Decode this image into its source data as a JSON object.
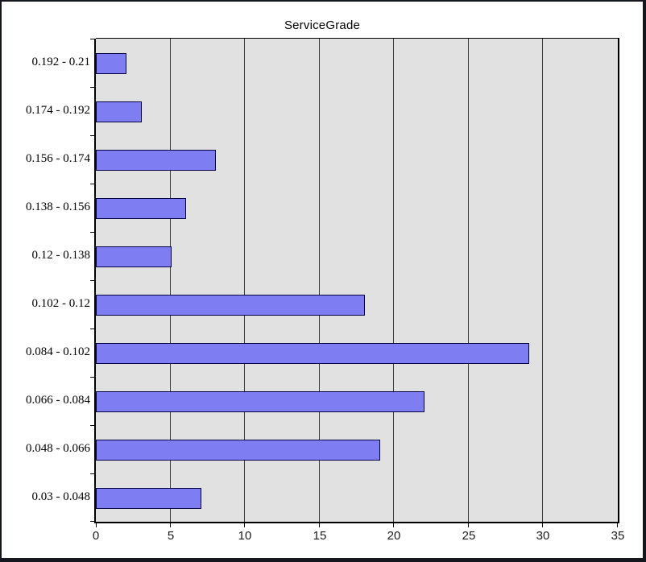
{
  "window": {
    "background": "#ffffff",
    "border_color": "#14181e"
  },
  "chart_data": {
    "type": "bar",
    "orientation": "horizontal",
    "title": "ServiceGrade",
    "categories": [
      "0.192 - 0.21",
      "0.174 - 0.192",
      "0.156 - 0.174",
      "0.138 - 0.156",
      "0.12 - 0.138",
      "0.102 - 0.12",
      "0.084 - 0.102",
      "0.066 - 0.084",
      "0.048 - 0.066",
      "0.03 - 0.048"
    ],
    "values": [
      2,
      3,
      8,
      6,
      5,
      18,
      29,
      22,
      19,
      7
    ],
    "xlabel": "",
    "ylabel": "",
    "xlim": [
      0,
      35
    ],
    "x_ticks": [
      0,
      5,
      10,
      15,
      20,
      25,
      30,
      35
    ],
    "grid": "vertical",
    "legend": "none",
    "colors": {
      "plot_background": "#e1e1e1",
      "bar_fill": "#7e7ef2",
      "bar_border": "#000040",
      "gridline": "#3c3c3c",
      "axis": "#000000",
      "label": "#000000"
    }
  }
}
